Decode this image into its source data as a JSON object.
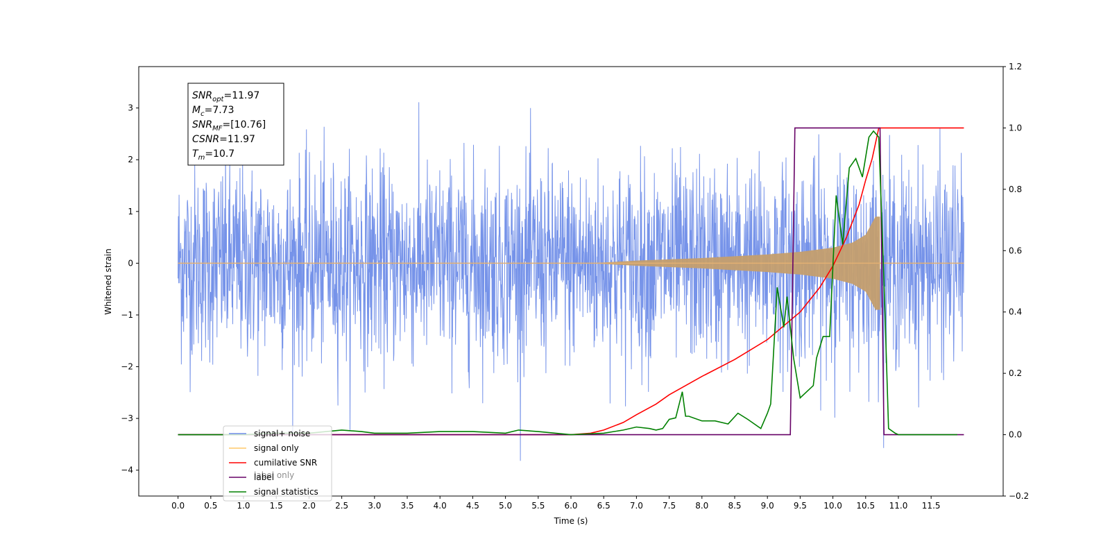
{
  "chart_data": {
    "type": "line",
    "xlabel": "Time (s)",
    "ylabel": "Whitened strain",
    "xlim": [
      -0.6,
      12.6
    ],
    "ylim_left": [
      -4.5,
      3.8
    ],
    "ylim_right": [
      -0.2,
      1.2
    ],
    "x_ticks": [
      "0.0",
      "0.5",
      "1.0",
      "1.5",
      "2.0",
      "2.5",
      "3.0",
      "3.5",
      "4.0",
      "4.5",
      "5.0",
      "5.5",
      "6.0",
      "6.5",
      "7.0",
      "7.5",
      "8.0",
      "8.5",
      "9.0",
      "9.5",
      "10.0",
      "10.5",
      "11.0",
      "11.5"
    ],
    "y_ticks_left": [
      "3",
      "2",
      "1",
      "0",
      "−1",
      "−2",
      "−3",
      "−4"
    ],
    "y_ticks_right": [
      "1.2",
      "1.0",
      "0.8",
      "0.6",
      "0.4",
      "0.2",
      "0.0",
      "−0.2"
    ],
    "annotation": [
      {
        "main": "SNR",
        "sub": "opt",
        "rest": "=11.97"
      },
      {
        "main": "M",
        "sub": "c",
        "rest": "=7.73"
      },
      {
        "main": "SNR",
        "sub": "MF",
        "rest": "=[10.76]"
      },
      {
        "main": "CSNR",
        "sub": "",
        "rest": "=11.97"
      },
      {
        "main": "T",
        "sub": "m",
        "rest": "=10.7"
      }
    ],
    "legend": [
      {
        "label": "signal+ noise",
        "color": "#6f8de8"
      },
      {
        "label": "signal only",
        "color": "#ffc869"
      },
      {
        "label": "cumilative SNR",
        "color": "#ff0000"
      },
      {
        "label": "label",
        "color": "#660066"
      },
      {
        "label": "signal statistics",
        "color": "#008000"
      }
    ],
    "hidden_legend_text": [
      "label only"
    ],
    "noise": {
      "t_start": 0.0,
      "t_end": 12.0,
      "band": [
        -1.5,
        1.5
      ],
      "extremes": [
        -4.1,
        3.45
      ]
    },
    "signal_envelope": {
      "x": [
        6.3,
        7.0,
        8.0,
        9.0,
        9.5,
        10.0,
        10.3,
        10.5,
        10.65,
        10.72
      ],
      "amp": [
        0.0,
        0.05,
        0.1,
        0.17,
        0.22,
        0.3,
        0.4,
        0.55,
        0.9,
        0.9
      ]
    },
    "series": [
      {
        "name": "cumilative SNR",
        "axis": "right",
        "color": "#ff0000",
        "x": [
          0,
          6.0,
          6.3,
          6.5,
          6.8,
          7.0,
          7.3,
          7.5,
          8.0,
          8.5,
          9.0,
          9.5,
          9.8,
          10.0,
          10.2,
          10.4,
          10.5,
          10.6,
          10.7,
          11.0,
          12.0
        ],
        "y": [
          0.0,
          0.0,
          0.005,
          0.015,
          0.04,
          0.065,
          0.1,
          0.13,
          0.19,
          0.245,
          0.31,
          0.4,
          0.48,
          0.55,
          0.64,
          0.75,
          0.83,
          0.9,
          1.0,
          1.0,
          1.0
        ]
      },
      {
        "name": "label",
        "axis": "right",
        "color": "#660066",
        "x": [
          0,
          9.35,
          9.42,
          10.72,
          10.78,
          12.0
        ],
        "y": [
          0,
          0,
          1,
          1,
          0,
          0
        ]
      },
      {
        "name": "signal statistics",
        "axis": "right",
        "color": "#008000",
        "x": [
          0,
          0.5,
          1.0,
          1.5,
          2.0,
          2.5,
          2.8,
          3.0,
          3.5,
          4.0,
          4.5,
          5.0,
          5.2,
          5.5,
          6.0,
          6.5,
          6.8,
          7.0,
          7.2,
          7.3,
          7.4,
          7.5,
          7.6,
          7.7,
          7.75,
          7.8,
          8.0,
          8.2,
          8.4,
          8.55,
          8.7,
          8.9,
          9.0,
          9.05,
          9.15,
          9.25,
          9.3,
          9.4,
          9.5,
          9.6,
          9.7,
          9.75,
          9.85,
          9.95,
          10.05,
          10.15,
          10.25,
          10.35,
          10.45,
          10.55,
          10.62,
          10.7,
          10.78,
          10.85,
          10.95,
          11.0,
          11.9
        ],
        "y": [
          0,
          0,
          0.0,
          0.005,
          0.005,
          0.015,
          0.01,
          0.005,
          0.005,
          0.01,
          0.01,
          0.005,
          0.015,
          0.01,
          0.0,
          0.005,
          0.015,
          0.025,
          0.02,
          0.015,
          0.02,
          0.05,
          0.055,
          0.14,
          0.06,
          0.06,
          0.045,
          0.045,
          0.035,
          0.07,
          0.05,
          0.02,
          0.07,
          0.1,
          0.48,
          0.35,
          0.45,
          0.25,
          0.12,
          0.14,
          0.16,
          0.25,
          0.32,
          0.32,
          0.78,
          0.62,
          0.87,
          0.9,
          0.84,
          0.97,
          0.99,
          0.97,
          0.5,
          0.02,
          0.005,
          0.0,
          0.0
        ]
      }
    ]
  }
}
